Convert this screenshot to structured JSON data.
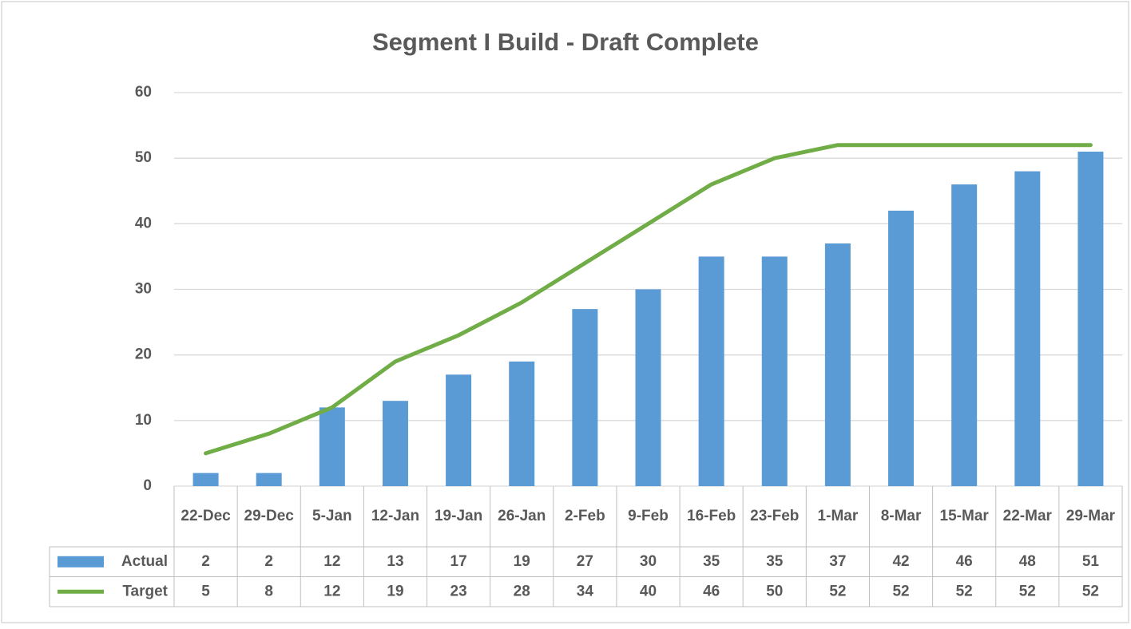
{
  "chart_data": {
    "type": "bar-line",
    "title": "Segment I Build - Draft Complete",
    "categories": [
      "22-Dec",
      "29-Dec",
      "5-Jan",
      "12-Jan",
      "19-Jan",
      "26-Jan",
      "2-Feb",
      "9-Feb",
      "16-Feb",
      "23-Feb",
      "1-Mar",
      "8-Mar",
      "15-Mar",
      "22-Mar",
      "29-Mar"
    ],
    "series": [
      {
        "name": "Actual",
        "type": "bar",
        "color": "#5b9bd5",
        "values": [
          2,
          2,
          12,
          13,
          17,
          19,
          27,
          30,
          35,
          35,
          37,
          42,
          46,
          48,
          51
        ]
      },
      {
        "name": "Target",
        "type": "line",
        "color": "#70ad47",
        "values": [
          5,
          8,
          12,
          19,
          23,
          28,
          34,
          40,
          46,
          50,
          52,
          52,
          52,
          52,
          52
        ]
      }
    ],
    "ylim": [
      0,
      60
    ],
    "yticks": [
      0,
      10,
      20,
      30,
      40,
      50,
      60
    ],
    "grid": true,
    "data_table": true
  }
}
